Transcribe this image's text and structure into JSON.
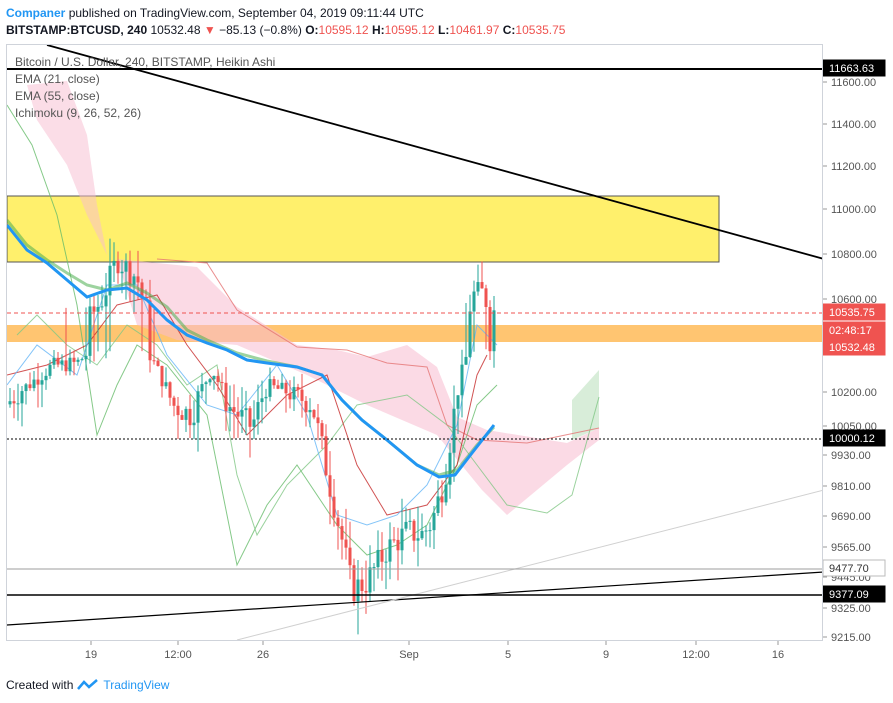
{
  "header": {
    "author": "Companer",
    "published": "published on TradingView.com, September 04, 2019 09:11:44 UTC",
    "symbol": "BITSTAMP:BTCUSD, 240",
    "last": "10532.48",
    "change": "−85.13 (−0.8%)",
    "o_label": "O:",
    "o": "10595.12",
    "h_label": "H:",
    "h": "10595.12",
    "l_label": "L:",
    "l": "10461.97",
    "c_label": "C:",
    "c": "10535.75"
  },
  "legend": {
    "title": "Bitcoin / U.S. Dollar, 240, BITSTAMP, Heikin Ashi",
    "ema21": "EMA (21, close)",
    "ema55": "EMA (55, close)",
    "ichimoku": "Ichimoku (9, 26, 52, 26)"
  },
  "price_axis": {
    "ticks": [
      "11600.00",
      "11400.00",
      "11200.00",
      "11000.00",
      "10800.00",
      "10600.00",
      "10200.00",
      "10050.00",
      "9930.00",
      "9810.00",
      "9690.00",
      "9565.00",
      "9445.00",
      "9325.00",
      "9215.00"
    ],
    "tags": [
      {
        "label": "11663.63",
        "bg": "#000000",
        "fg": "#ffffff"
      },
      {
        "label": "10535.75",
        "bg": "#ef5350",
        "fg": "#ffffff"
      },
      {
        "label": "02:48:17",
        "bg": "#ef5350",
        "fg": "#ffffff"
      },
      {
        "label": "10532.48",
        "bg": "#ef5350",
        "fg": "#ffffff"
      },
      {
        "label": "10000.12",
        "bg": "#000000",
        "fg": "#ffffff"
      },
      {
        "label": "9477.70",
        "bg": "#ffffff",
        "fg": "#333333"
      },
      {
        "label": "9377.09",
        "bg": "#000000",
        "fg": "#ffffff"
      }
    ]
  },
  "time_axis": {
    "labels": [
      "19",
      "12:00",
      "26",
      "Sep",
      "5",
      "9",
      "12:00",
      "16"
    ]
  },
  "colors": {
    "up": "#26a69a",
    "down": "#ef5350",
    "ema21": "#2196f3",
    "ema55": "#4caf50",
    "supply_zone": "#ffeb3b",
    "entry_zone": "#ffb74d",
    "cloud_bear": "#f8bbd0",
    "cloud_bull": "#c8e6c9"
  },
  "footer": {
    "created_with": "Created with",
    "brand": "TradingView"
  }
}
